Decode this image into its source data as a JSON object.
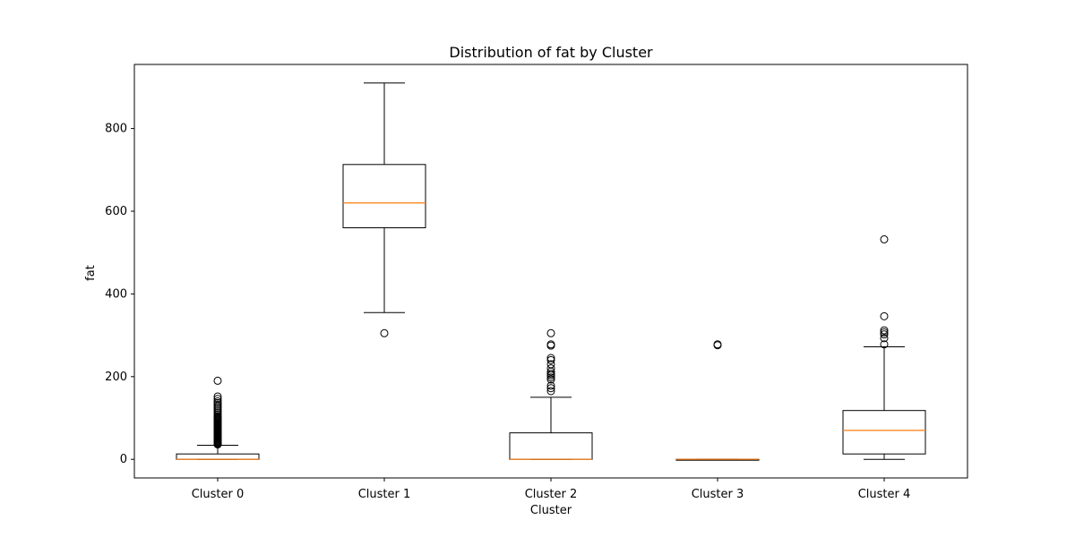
{
  "chart_data": {
    "type": "box",
    "title": "Distribution of fat by Cluster",
    "xlabel": "Cluster",
    "ylabel": "fat",
    "ylim": [
      -45,
      955
    ],
    "yticks": [
      0,
      200,
      400,
      600,
      800
    ],
    "grid": false,
    "categories": [
      "Cluster 0",
      "Cluster 1",
      "Cluster 2",
      "Cluster 3",
      "Cluster 4"
    ],
    "boxes": [
      {
        "name": "Cluster 0",
        "whisker_low": 0,
        "q1": 0,
        "median": 0,
        "q3": 13,
        "whisker_high": 34,
        "outliers": [
          36,
          38,
          40,
          42,
          44,
          46,
          48,
          50,
          52,
          54,
          56,
          58,
          60,
          62,
          64,
          66,
          68,
          70,
          72,
          74,
          76,
          78,
          80,
          82,
          84,
          86,
          88,
          90,
          92,
          94,
          96,
          98,
          100,
          102,
          104,
          108,
          112,
          116,
          120,
          124,
          128,
          132,
          136,
          140,
          146,
          152,
          190
        ]
      },
      {
        "name": "Cluster 1",
        "whisker_low": 355,
        "q1": 560,
        "median": 620,
        "q3": 713,
        "whisker_high": 910,
        "outliers": [
          305
        ]
      },
      {
        "name": "Cluster 2",
        "whisker_low": 0,
        "q1": 0,
        "median": 0,
        "q3": 64,
        "whisker_high": 150,
        "outliers": [
          165,
          172,
          178,
          193,
          198,
          203,
          207,
          212,
          220,
          230,
          240,
          245,
          275,
          278,
          305
        ]
      },
      {
        "name": "Cluster 3",
        "whisker_low": 0,
        "q1": 0,
        "median": 0,
        "q3": 0,
        "whisker_high": 0,
        "outliers": [
          276,
          278
        ]
      },
      {
        "name": "Cluster 4",
        "whisker_low": 0,
        "q1": 13,
        "median": 70,
        "q3": 118,
        "whisker_high": 272,
        "outliers": [
          278,
          293,
          302,
          307,
          312,
          346,
          532
        ]
      }
    ],
    "colors": {
      "box": "#000000",
      "median": "#ff7f0e",
      "whisker": "#000000",
      "outlier": "#000000",
      "axis": "#000000"
    }
  }
}
